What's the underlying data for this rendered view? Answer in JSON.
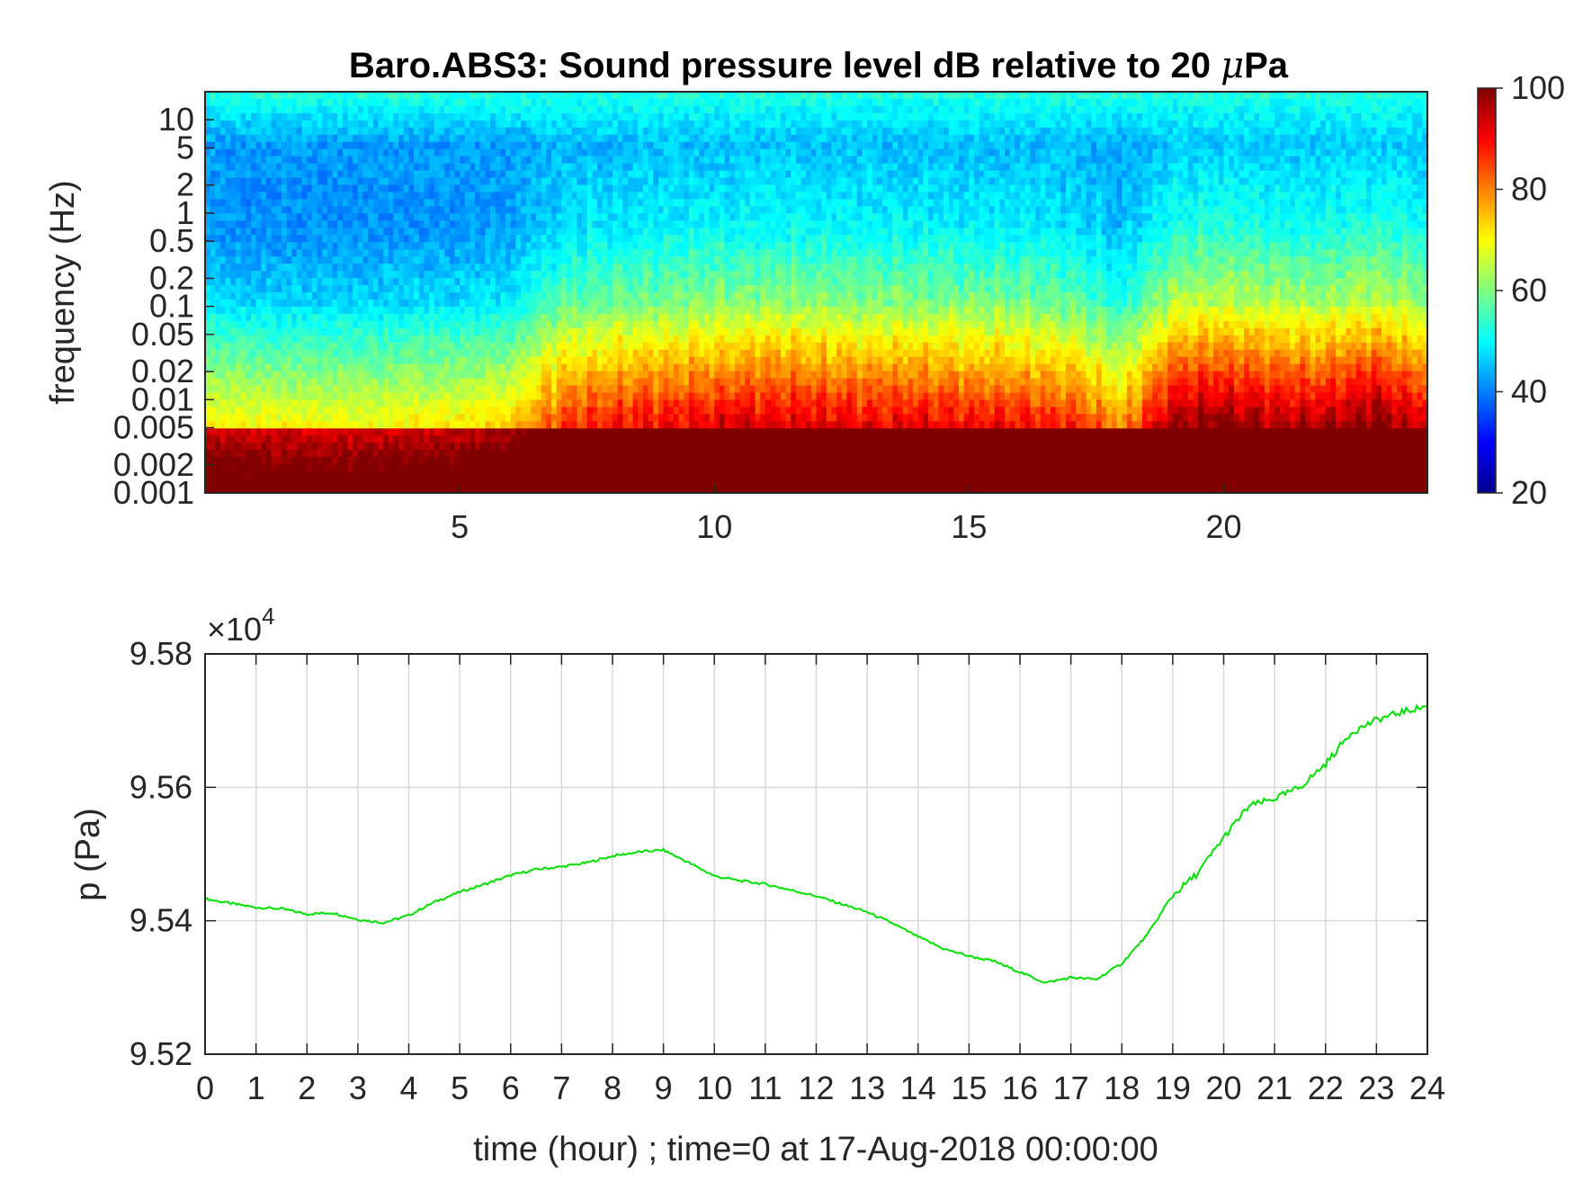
{
  "chart_data": [
    {
      "type": "heatmap",
      "title": "Baro.ABS3: Sound pressure level dB relative to 20 μPa",
      "title_prefix": "Baro.ABS3: Sound pressure level dB relative to 20 ",
      "title_mu": "μ",
      "title_suffix": "Pa",
      "ylabel": "frequency (Hz)",
      "xlim": [
        0,
        24
      ],
      "x_ticks": [
        "5",
        "10",
        "15",
        "20"
      ],
      "x_tick_values": [
        5,
        10,
        15,
        20
      ],
      "y_scale": "log",
      "ylim": [
        0.001,
        20
      ],
      "y_ticks": [
        "10",
        "5",
        "2",
        "1",
        "0.5",
        "0.2",
        "0.1",
        "0.05",
        "0.02",
        "0.01",
        "0.005",
        "0.002",
        "0.001"
      ],
      "y_tick_values": [
        10,
        5,
        2,
        1,
        0.5,
        0.2,
        0.1,
        0.05,
        0.02,
        0.01,
        0.005,
        0.002,
        0.001
      ],
      "colormap": "jet",
      "colorbar": {
        "range": [
          20,
          100
        ],
        "ticks": [
          "100",
          "80",
          "60",
          "40",
          "20"
        ],
        "tick_values": [
          100,
          80,
          60,
          40,
          20
        ]
      },
      "time_hours": [
        0,
        1,
        2,
        3,
        4,
        5,
        6,
        7,
        8,
        9,
        10,
        11,
        12,
        13,
        14,
        15,
        16,
        17,
        18,
        19,
        20,
        21,
        22,
        23,
        24
      ],
      "activity": [
        0.25,
        0.22,
        0.22,
        0.22,
        0.24,
        0.26,
        0.3,
        0.58,
        0.65,
        0.68,
        0.72,
        0.74,
        0.72,
        0.7,
        0.7,
        0.68,
        0.66,
        0.62,
        0.4,
        0.85,
        0.88,
        0.82,
        0.8,
        0.9,
        0.75
      ]
    },
    {
      "type": "line",
      "xlabel": "time (hour) ; time=0 at 17-Aug-2018 00:00:00",
      "ylabel": "p (Pa)",
      "y_multiplier_prefix": "×10",
      "y_multiplier_exp": "4",
      "xlim": [
        0,
        24
      ],
      "ylim": [
        9.52,
        9.58
      ],
      "x_ticks": [
        "0",
        "1",
        "2",
        "3",
        "4",
        "5",
        "6",
        "7",
        "8",
        "9",
        "10",
        "11",
        "12",
        "13",
        "14",
        "15",
        "16",
        "17",
        "18",
        "19",
        "20",
        "21",
        "22",
        "23",
        "24"
      ],
      "y_ticks": [
        "9.52",
        "9.54",
        "9.56",
        "9.58"
      ],
      "y_tick_values": [
        9.52,
        9.54,
        9.56,
        9.58
      ],
      "grid": true,
      "color": "#00e000",
      "series": [
        {
          "x": [
            0,
            0.5,
            1,
            1.5,
            2,
            2.5,
            3,
            3.5,
            4,
            4.5,
            5,
            5.5,
            6,
            6.5,
            7,
            7.5,
            8,
            8.5,
            9,
            9.5,
            10,
            10.5,
            11,
            11.5,
            12,
            12.5,
            13,
            13.5,
            14,
            14.5,
            15,
            15.5,
            16,
            16.5,
            17,
            17.5,
            18,
            18.5,
            19,
            19.5,
            20,
            20.5,
            21,
            21.5,
            22,
            22.5,
            23,
            23.5,
            24
          ],
          "y": [
            9.5433,
            9.5426,
            9.542,
            9.5418,
            9.541,
            9.5412,
            9.5402,
            9.5397,
            9.5408,
            9.5428,
            9.5443,
            9.5455,
            9.5468,
            9.5477,
            9.5481,
            9.5487,
            9.5497,
            9.5503,
            9.5506,
            9.5487,
            9.5467,
            9.546,
            9.5455,
            9.5446,
            9.5437,
            9.5425,
            9.5413,
            9.5396,
            9.5376,
            9.5358,
            9.5347,
            9.5339,
            9.5323,
            9.5307,
            9.5315,
            9.5312,
            9.5336,
            9.5379,
            9.5438,
            9.5472,
            9.5525,
            9.5572,
            9.5583,
            9.56,
            9.5635,
            9.5682,
            9.5701,
            9.5713,
            9.5722
          ]
        }
      ]
    }
  ]
}
